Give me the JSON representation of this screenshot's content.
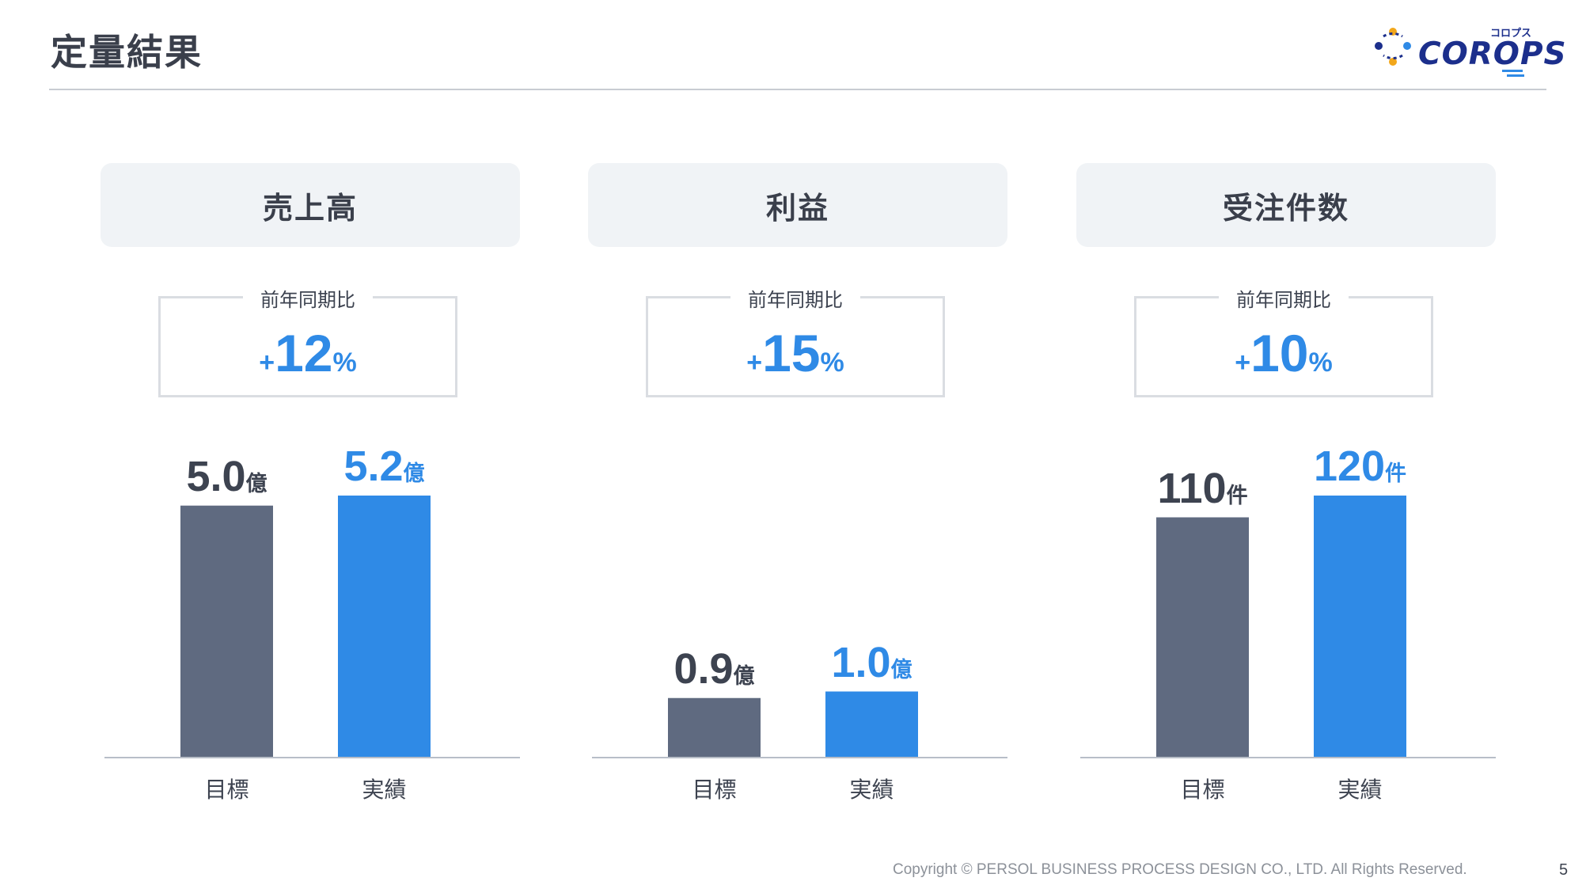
{
  "page": {
    "title": "定量結果",
    "page_number": "5",
    "copyright": "Copyright © PERSOL BUSINESS PROCESS DESIGN CO., LTD. All Rights Reserved."
  },
  "logo": {
    "word": "COROPS",
    "kana": "コロプス"
  },
  "colors": {
    "target_bar": "#5f6a80",
    "actual_bar": "#2f8ae6",
    "text": "#3d4350",
    "card_bg": "#f0f3f6"
  },
  "panels": [
    {
      "title": "売上高",
      "yoy_label": "前年同期比",
      "yoy_sign": "+",
      "yoy_value": "12",
      "yoy_unit": "%",
      "target": {
        "value_text": "5.0",
        "unit": "億"
      },
      "actual": {
        "value_text": "5.2",
        "unit": "億"
      },
      "categories": [
        "目標",
        "実績"
      ]
    },
    {
      "title": "利益",
      "yoy_label": "前年同期比",
      "yoy_sign": "+",
      "yoy_value": "15",
      "yoy_unit": "%",
      "target": {
        "value_text": "0.9",
        "unit": "億"
      },
      "actual": {
        "value_text": "1.0",
        "unit": "億"
      },
      "categories": [
        "目標",
        "実績"
      ]
    },
    {
      "title": "受注件数",
      "yoy_label": "前年同期比",
      "yoy_sign": "+",
      "yoy_value": "10",
      "yoy_unit": "%",
      "target": {
        "value_text": "110",
        "unit": "件"
      },
      "actual": {
        "value_text": "120",
        "unit": "件"
      },
      "categories": [
        "目標",
        "実績"
      ]
    }
  ],
  "chart_data": [
    {
      "type": "bar",
      "title": "売上高",
      "categories": [
        "目標",
        "実績"
      ],
      "values": [
        5.0,
        5.2
      ],
      "unit": "億",
      "ylim": [
        0,
        5.2
      ]
    },
    {
      "type": "bar",
      "title": "利益",
      "categories": [
        "目標",
        "実績"
      ],
      "values": [
        0.9,
        1.0
      ],
      "unit": "億",
      "ylim": [
        0,
        4.0
      ]
    },
    {
      "type": "bar",
      "title": "受注件数",
      "categories": [
        "目標",
        "実績"
      ],
      "values": [
        110,
        120
      ],
      "unit": "件",
      "ylim": [
        0,
        120
      ]
    }
  ]
}
